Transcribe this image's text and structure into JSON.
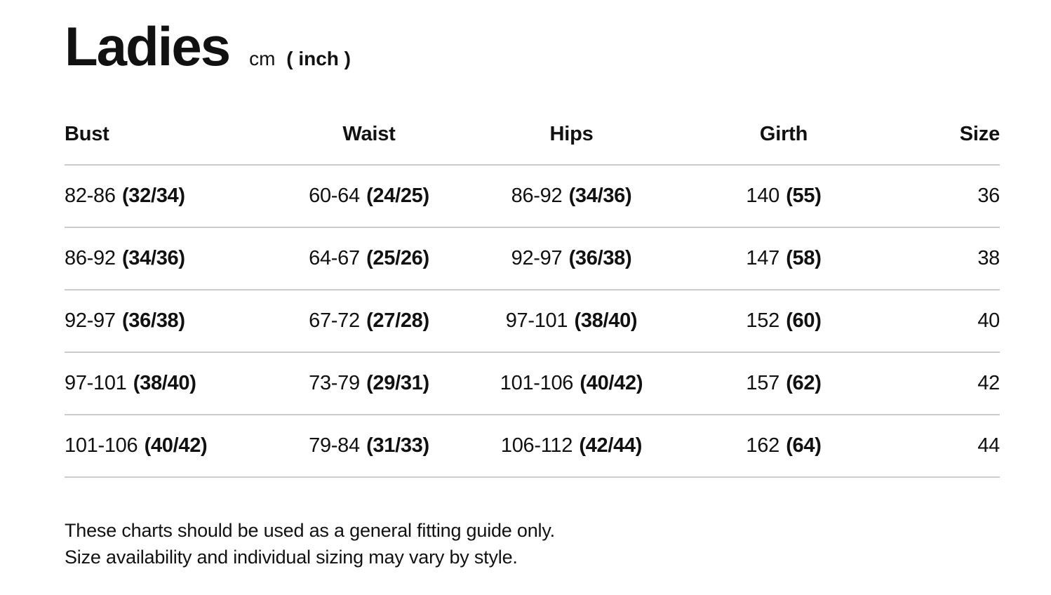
{
  "title": {
    "main": "Ladies",
    "unit_cm": "cm",
    "unit_inch": "( inch )"
  },
  "colors": {
    "text": "#111111",
    "divider": "#cbcbcb",
    "background": "#ffffff"
  },
  "table": {
    "headers": {
      "bust": "Bust",
      "waist": "Waist",
      "hips": "Hips",
      "girth": "Girth",
      "size": "Size"
    },
    "rows": [
      {
        "bust": {
          "cm": "82-86",
          "inch": "(32/34)"
        },
        "waist": {
          "cm": "60-64",
          "inch": "(24/25)"
        },
        "hips": {
          "cm": "86-92",
          "inch": "(34/36)"
        },
        "girth": {
          "cm": "140",
          "inch": "(55)"
        },
        "size": "36"
      },
      {
        "bust": {
          "cm": "86-92",
          "inch": "(34/36)"
        },
        "waist": {
          "cm": "64-67",
          "inch": "(25/26)"
        },
        "hips": {
          "cm": "92-97",
          "inch": "(36/38)"
        },
        "girth": {
          "cm": "147",
          "inch": "(58)"
        },
        "size": "38"
      },
      {
        "bust": {
          "cm": "92-97",
          "inch": "(36/38)"
        },
        "waist": {
          "cm": "67-72",
          "inch": "(27/28)"
        },
        "hips": {
          "cm": "97-101",
          "inch": "(38/40)"
        },
        "girth": {
          "cm": "152",
          "inch": "(60)"
        },
        "size": "40"
      },
      {
        "bust": {
          "cm": "97-101",
          "inch": "(38/40)"
        },
        "waist": {
          "cm": "73-79",
          "inch": "(29/31)"
        },
        "hips": {
          "cm": "101-106",
          "inch": "(40/42)"
        },
        "girth": {
          "cm": "157",
          "inch": "(62)"
        },
        "size": "42"
      },
      {
        "bust": {
          "cm": "101-106",
          "inch": "(40/42)"
        },
        "waist": {
          "cm": "79-84",
          "inch": "(31/33)"
        },
        "hips": {
          "cm": "106-112",
          "inch": "(42/44)"
        },
        "girth": {
          "cm": "162",
          "inch": "(64)"
        },
        "size": "44"
      }
    ]
  },
  "footer": {
    "line1": "These charts should be used as a general fitting guide only.",
    "line2": "Size availability and individual sizing may vary by style."
  }
}
